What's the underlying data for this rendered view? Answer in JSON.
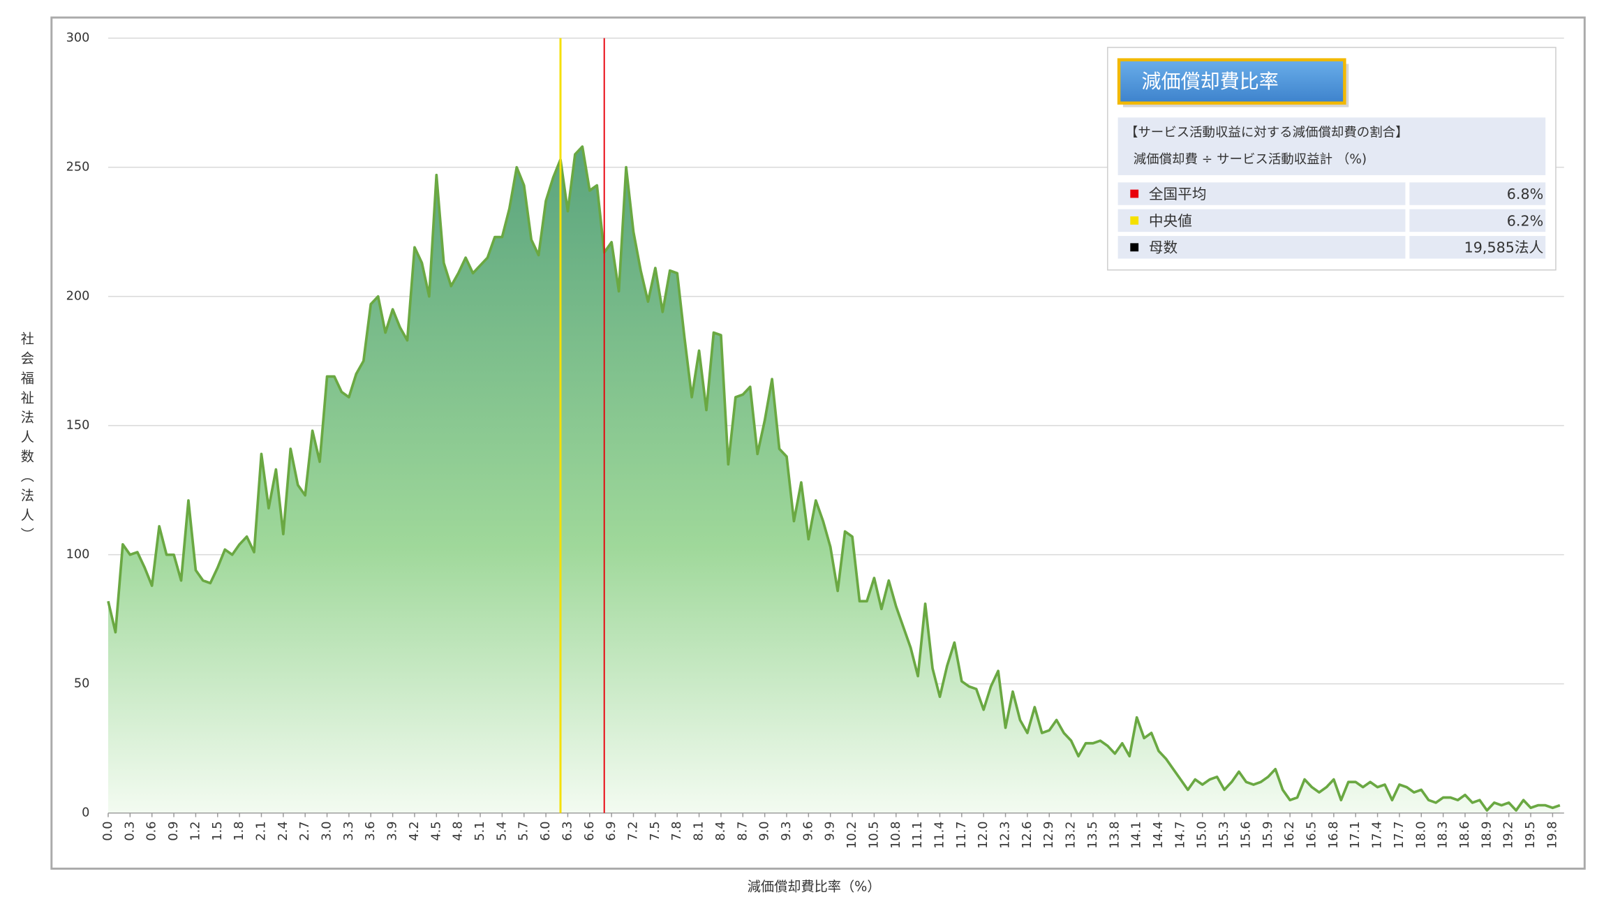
{
  "chart_data": {
    "type": "area",
    "y_label": "社会福祉法人数（法人）",
    "x_label": "減価償却費比率（%）",
    "color": "#6aa842",
    "x": [
      0.0,
      0.1,
      0.2,
      0.3,
      0.4,
      0.5,
      0.6,
      0.7,
      0.8,
      0.9,
      1.0,
      1.1,
      1.2,
      1.3,
      1.4,
      1.5,
      1.6,
      1.7,
      1.8,
      1.9,
      2.0,
      2.1,
      2.2,
      2.3,
      2.4,
      2.5,
      2.6,
      2.7,
      2.8,
      2.9,
      3.0,
      3.1,
      3.2,
      3.3,
      3.4,
      3.5,
      3.6,
      3.7,
      3.8,
      3.9,
      4.0,
      4.1,
      4.2,
      4.3,
      4.4,
      4.5,
      4.6,
      4.7,
      4.8,
      4.9,
      5.0,
      5.1,
      5.2,
      5.3,
      5.4,
      5.5,
      5.6,
      5.7,
      5.8,
      5.9,
      6.0,
      6.1,
      6.2,
      6.3,
      6.4,
      6.5,
      6.6,
      6.7,
      6.8,
      6.9,
      7.0,
      7.1,
      7.2,
      7.3,
      7.4,
      7.5,
      7.6,
      7.7,
      7.8,
      7.9,
      8.0,
      8.1,
      8.2,
      8.3,
      8.4,
      8.5,
      8.6,
      8.7,
      8.8,
      8.9,
      9.0,
      9.1,
      9.2,
      9.3,
      9.4,
      9.5,
      9.6,
      9.7,
      9.8,
      9.9,
      10.0,
      10.1,
      10.2,
      10.3,
      10.4,
      10.5,
      10.6,
      10.7,
      10.8,
      10.9,
      11.0,
      11.1,
      11.2,
      11.3,
      11.4,
      11.5,
      11.6,
      11.7,
      11.8,
      11.9,
      12.0,
      12.1,
      12.2,
      12.3,
      12.4,
      12.5,
      12.6,
      12.7,
      12.8,
      12.9,
      13.0,
      13.1,
      13.2,
      13.3,
      13.4,
      13.5,
      13.6,
      13.7,
      13.8,
      13.9,
      14.0,
      14.1,
      14.2,
      14.3,
      14.4,
      14.5,
      14.6,
      14.7,
      14.8,
      14.9,
      15.0,
      15.1,
      15.2,
      15.3,
      15.4,
      15.5,
      15.6,
      15.7,
      15.8,
      15.9,
      16.0,
      16.1,
      16.2,
      16.3,
      16.4,
      16.5,
      16.6,
      16.7,
      16.8,
      16.9,
      17.0,
      17.1,
      17.2,
      17.3,
      17.4,
      17.5,
      17.6,
      17.7,
      17.8,
      17.9,
      18.0,
      18.1,
      18.2,
      18.3,
      18.4,
      18.5,
      18.6,
      18.7,
      18.8,
      18.9,
      19.0,
      19.1,
      19.2,
      19.3,
      19.4,
      19.5,
      19.6,
      19.7,
      19.8,
      19.9
    ],
    "values": [
      82,
      70,
      104,
      100,
      101,
      95,
      88,
      111,
      100,
      100,
      90,
      121,
      94,
      90,
      89,
      95,
      102,
      100,
      104,
      107,
      101,
      139,
      118,
      133,
      108,
      141,
      127,
      123,
      148,
      136,
      169,
      169,
      163,
      161,
      170,
      175,
      197,
      200,
      186,
      195,
      188,
      183,
      219,
      213,
      200,
      247,
      213,
      204,
      209,
      215,
      209,
      212,
      215,
      223,
      223,
      234,
      250,
      243,
      222,
      216,
      237,
      246,
      253,
      233,
      255,
      258,
      241,
      243,
      217,
      221,
      202,
      250,
      225,
      210,
      198,
      211,
      194,
      210,
      209,
      184,
      161,
      179,
      156,
      186,
      185,
      135,
      161,
      162,
      165,
      139,
      152,
      168,
      141,
      138,
      113,
      128,
      106,
      121,
      113,
      103,
      86,
      109,
      107,
      82,
      82,
      91,
      79,
      90,
      80,
      72,
      64,
      53,
      81,
      56,
      45,
      57,
      66,
      51,
      49,
      48,
      40,
      49,
      55,
      33,
      47,
      36,
      31,
      41,
      31,
      32,
      36,
      31,
      28,
      22,
      27,
      27,
      28,
      26,
      23,
      27,
      22,
      37,
      29,
      31,
      24,
      21,
      17,
      13,
      9,
      13,
      11,
      13,
      14,
      9,
      12,
      16,
      12,
      11,
      12,
      14,
      17,
      9,
      5,
      6,
      13,
      10,
      8,
      10,
      13,
      5,
      12,
      12,
      10,
      12,
      10,
      11,
      5,
      11,
      10,
      8,
      9,
      5,
      4,
      6,
      6,
      5,
      7,
      4,
      5,
      1,
      4,
      3,
      4,
      1,
      5,
      2,
      3,
      3,
      2,
      3
    ],
    "xlim": [
      0,
      19.9
    ],
    "xticks": [
      {
        "value": 0,
        "label": "0.0"
      },
      {
        "value": 0.3,
        "label": "0.3"
      },
      {
        "value": 0.6,
        "label": "0.6"
      },
      {
        "value": 0.9,
        "label": "0.9"
      },
      {
        "value": 1.2,
        "label": "1.2"
      },
      {
        "value": 1.5,
        "label": "1.5"
      },
      {
        "value": 1.8,
        "label": "1.8"
      },
      {
        "value": 2.1,
        "label": "2.1"
      },
      {
        "value": 2.4,
        "label": "2.4"
      },
      {
        "value": 2.7,
        "label": "2.7"
      },
      {
        "value": 3,
        "label": "3.0"
      },
      {
        "value": 3.3,
        "label": "3.3"
      },
      {
        "value": 3.6,
        "label": "3.6"
      },
      {
        "value": 3.9,
        "label": "3.9"
      },
      {
        "value": 4.2,
        "label": "4.2"
      },
      {
        "value": 4.5,
        "label": "4.5"
      },
      {
        "value": 4.8,
        "label": "4.8"
      },
      {
        "value": 5.1,
        "label": "5.1"
      },
      {
        "value": 5.4,
        "label": "5.4"
      },
      {
        "value": 5.7,
        "label": "5.7"
      },
      {
        "value": 6,
        "label": "6.0"
      },
      {
        "value": 6.3,
        "label": "6.3"
      },
      {
        "value": 6.6,
        "label": "6.6"
      },
      {
        "value": 6.9,
        "label": "6.9"
      },
      {
        "value": 7.2,
        "label": "7.2"
      },
      {
        "value": 7.5,
        "label": "7.5"
      },
      {
        "value": 7.8,
        "label": "7.8"
      },
      {
        "value": 8.1,
        "label": "8.1"
      },
      {
        "value": 8.4,
        "label": "8.4"
      },
      {
        "value": 8.7,
        "label": "8.7"
      },
      {
        "value": 9,
        "label": "9.0"
      },
      {
        "value": 9.3,
        "label": "9.3"
      },
      {
        "value": 9.6,
        "label": "9.6"
      },
      {
        "value": 9.9,
        "label": "9.9"
      },
      {
        "value": 10.2,
        "label": "10.2"
      },
      {
        "value": 10.5,
        "label": "10.5"
      },
      {
        "value": 10.8,
        "label": "10.8"
      },
      {
        "value": 11.1,
        "label": "11.1"
      },
      {
        "value": 11.4,
        "label": "11.4"
      },
      {
        "value": 11.7,
        "label": "11.7"
      },
      {
        "value": 12,
        "label": "12.0"
      },
      {
        "value": 12.3,
        "label": "12.3"
      },
      {
        "value": 12.6,
        "label": "12.6"
      },
      {
        "value": 12.9,
        "label": "12.9"
      },
      {
        "value": 13.2,
        "label": "13.2"
      },
      {
        "value": 13.5,
        "label": "13.5"
      },
      {
        "value": 13.8,
        "label": "13.8"
      },
      {
        "value": 14.1,
        "label": "14.1"
      },
      {
        "value": 14.4,
        "label": "14.4"
      },
      {
        "value": 14.7,
        "label": "14.7"
      },
      {
        "value": 15,
        "label": "15.0"
      },
      {
        "value": 15.3,
        "label": "15.3"
      },
      {
        "value": 15.6,
        "label": "15.6"
      },
      {
        "value": 15.9,
        "label": "15.9"
      },
      {
        "value": 16.2,
        "label": "16.2"
      },
      {
        "value": 16.5,
        "label": "16.5"
      },
      {
        "value": 16.8,
        "label": "16.8"
      },
      {
        "value": 17.1,
        "label": "17.1"
      },
      {
        "value": 17.4,
        "label": "17.4"
      },
      {
        "value": 17.7,
        "label": "17.7"
      },
      {
        "value": 18,
        "label": "18.0"
      },
      {
        "value": 18.3,
        "label": "18.3"
      },
      {
        "value": 18.6,
        "label": "18.6"
      },
      {
        "value": 18.9,
        "label": "18.9"
      },
      {
        "value": 19.2,
        "label": "19.2"
      },
      {
        "value": 19.5,
        "label": "19.5"
      },
      {
        "value": 19.8,
        "label": "19.8"
      }
    ],
    "ylim": [
      0,
      300
    ],
    "yticks": [
      0,
      50,
      100,
      150,
      200,
      250,
      300
    ],
    "grid": true,
    "info_title": "減価償却費比率",
    "info_lines": [
      "【サービス活動収益に対する減価償却費の割合】",
      "減価償却費 ÷ サービス活動収益計 （%)"
    ],
    "reference_lines": [
      {
        "name": "全国平均",
        "value": 6.8,
        "label": "6.8%",
        "color": "#e8000b"
      },
      {
        "name": "中央値",
        "value": 6.2,
        "label": "6.2%",
        "color": "#f5e000"
      }
    ],
    "count": {
      "name": "母数",
      "value": 19585,
      "label": "19,585法人",
      "color": "#000000"
    }
  }
}
